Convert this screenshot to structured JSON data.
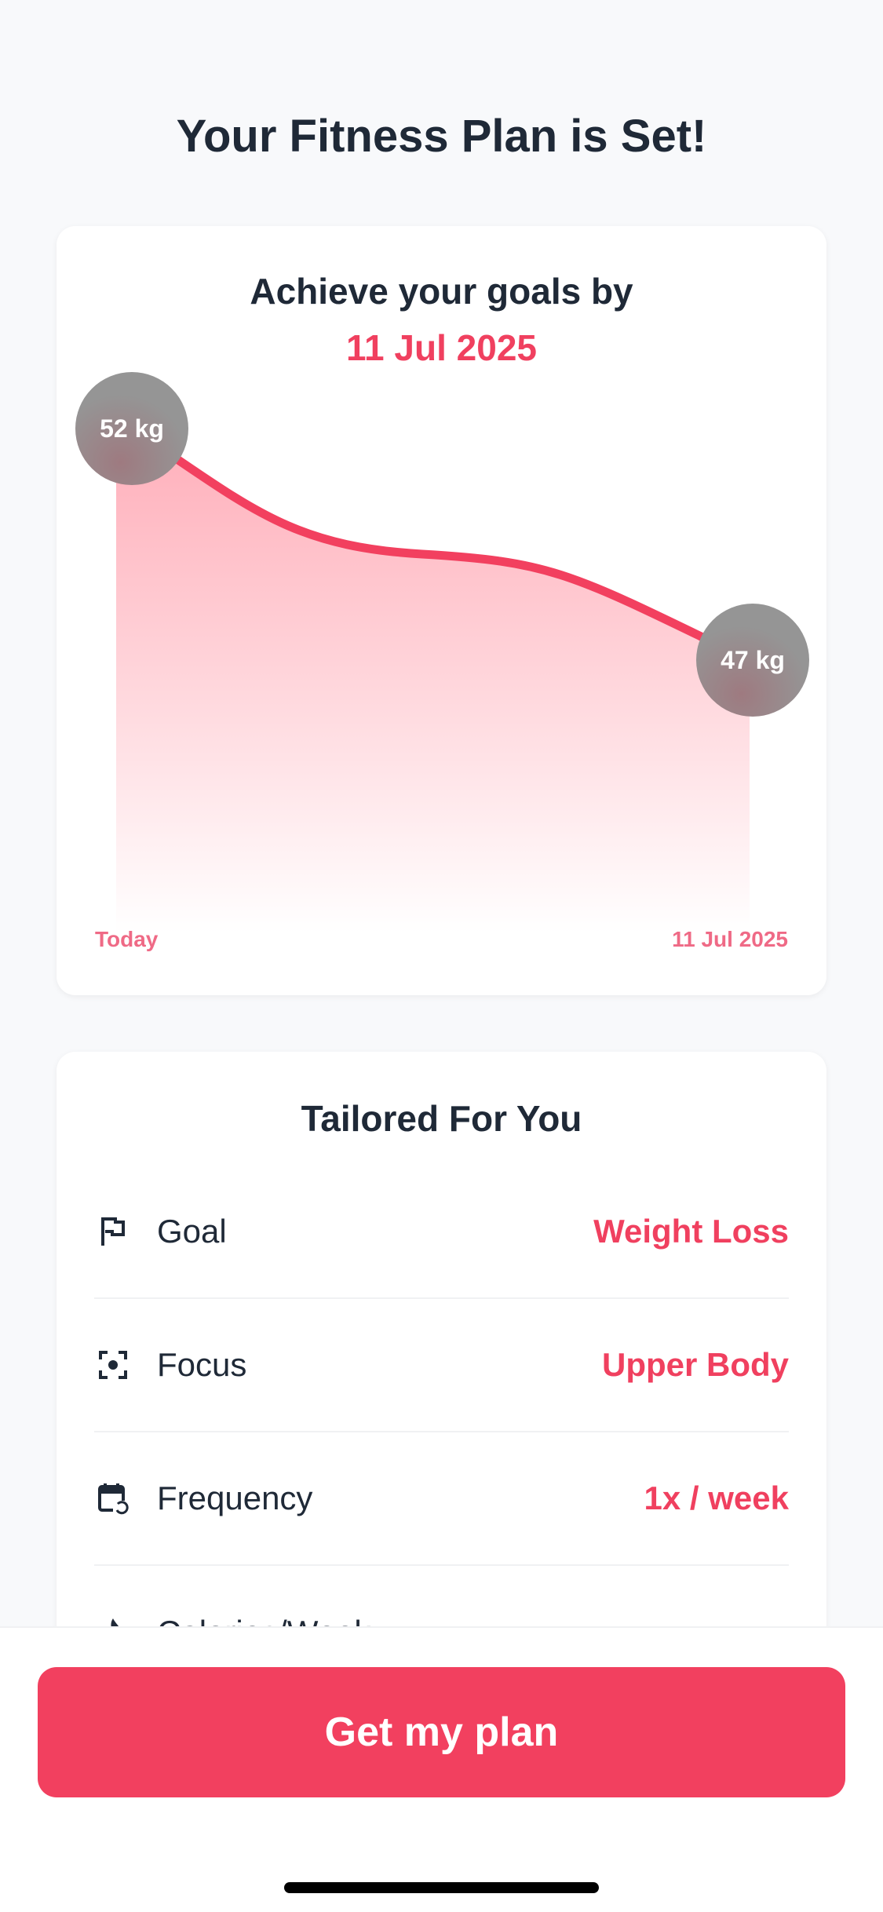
{
  "page_title": "Your Fitness Plan is Set!",
  "goal_card": {
    "heading": "Achieve your goals by",
    "target_date": "11 Jul 2025",
    "start_label": "52 kg",
    "end_label": "47 kg",
    "x_start": "Today",
    "x_end": "11 Jul 2025",
    "accent_color": "#f2405f"
  },
  "chart_data": {
    "type": "area",
    "x": [
      "Today",
      "11 Jul 2025"
    ],
    "series": [
      {
        "values": [
          52,
          47
        ]
      }
    ],
    "unit": "kg",
    "grid": false
  },
  "tailored": {
    "heading": "Tailored For You",
    "rows": [
      {
        "icon": "flag-icon",
        "label": "Goal",
        "value": "Weight Loss"
      },
      {
        "icon": "focus-icon",
        "label": "Focus",
        "value": "Upper Body"
      },
      {
        "icon": "calendar-repeat-icon",
        "label": "Frequency",
        "value": "1x / week"
      },
      {
        "icon": "flame-icon",
        "label": "Calories/Week",
        "value": ""
      }
    ]
  },
  "cta": {
    "label": "Get my plan"
  }
}
